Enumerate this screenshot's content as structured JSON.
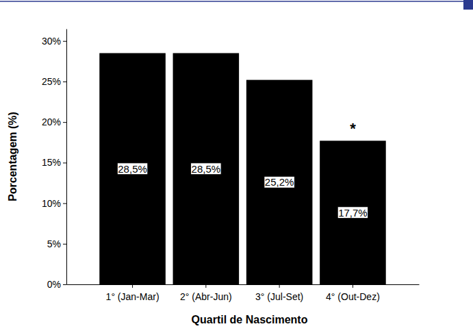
{
  "chart_data": {
    "type": "bar",
    "x_label": "Quartil de Nascimento",
    "y_label": "Porcentagem (%)",
    "categories": [
      "1° (Jan-Mar)",
      "2° (Abr-Jun)",
      "3° (Jul-Set)",
      "4° (Out-Dez)"
    ],
    "values": [
      28.5,
      28.5,
      25.2,
      17.7
    ],
    "value_labels": [
      "28,5%",
      "28,5%",
      "25,2%",
      "17,7%"
    ],
    "data_labels": true,
    "color": "#000000",
    "ylim": [
      0,
      31.5
    ],
    "yticks": [
      {
        "value": 0,
        "label": "0%"
      },
      {
        "value": 5,
        "label": "5%"
      },
      {
        "value": 10,
        "label": "10%"
      },
      {
        "value": 15,
        "label": "15%"
      },
      {
        "value": 20,
        "label": "20%"
      },
      {
        "value": 25,
        "label": "25%"
      },
      {
        "value": 30,
        "label": "30%"
      }
    ],
    "grid": false,
    "annotations": [
      {
        "text": "*",
        "category": "4° (Out-Dez)"
      }
    ]
  }
}
